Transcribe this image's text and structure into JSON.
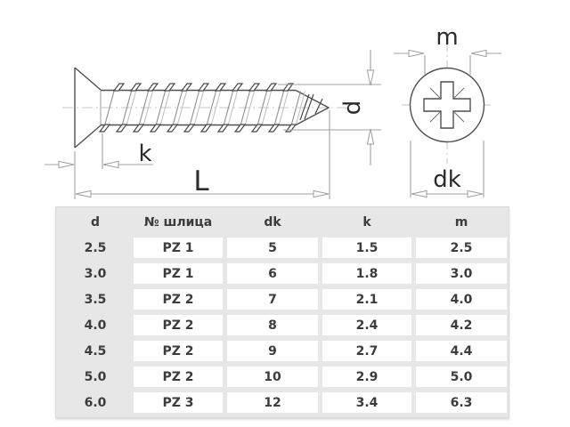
{
  "diagram": {
    "side_view_labels": {
      "k": "k",
      "L": "L",
      "d": "d"
    },
    "top_view_labels": {
      "m": "m",
      "dk": "dk"
    }
  },
  "table": {
    "headers": [
      "d",
      "№ шлица",
      "dk",
      "k",
      "m"
    ],
    "rows": [
      [
        "2.5",
        "PZ 1",
        "5",
        "1.5",
        "2.5"
      ],
      [
        "3.0",
        "PZ 1",
        "6",
        "1.8",
        "3.0"
      ],
      [
        "3.5",
        "PZ 2",
        "7",
        "2.1",
        "4.0"
      ],
      [
        "4.0",
        "PZ 2",
        "8",
        "2.4",
        "4.2"
      ],
      [
        "4.5",
        "PZ 2",
        "9",
        "2.7",
        "4.4"
      ],
      [
        "5.0",
        "PZ 2",
        "10",
        "2.9",
        "5.0"
      ],
      [
        "6.0",
        "PZ 3",
        "12",
        "3.4",
        "6.3"
      ]
    ]
  },
  "colors": {
    "panel_bg": "#e7e7e7",
    "cell_bg": "#ffffff",
    "table_text": "#3c3c3c",
    "outline": "#4f4f4f",
    "dimension_lines": "#a3a3a3",
    "label_text": "#2b2b2b"
  }
}
